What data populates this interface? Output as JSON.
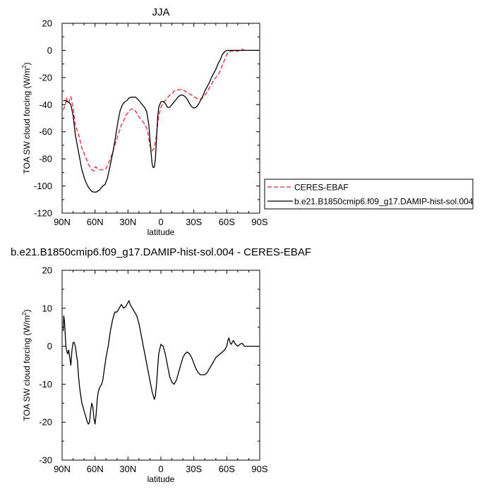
{
  "chart_data": [
    {
      "type": "line",
      "title": "JJA",
      "xlabel": "latitude",
      "ylabel": "TOA SW cloud forcing",
      "ylabel_unit": "(W/m",
      "ylabel_unit_sup": "2",
      "ylabel_unit_close": ")",
      "x_direction": "north-to-south",
      "xlim": [
        90,
        -90
      ],
      "ylim": [
        -120,
        20
      ],
      "xticks": [
        90,
        60,
        30,
        0,
        -30,
        -60,
        -90
      ],
      "xtick_labels": [
        "90N",
        "60N",
        "30N",
        "0",
        "30S",
        "60S",
        "90S"
      ],
      "yticks": [
        -120,
        -100,
        -80,
        -60,
        -40,
        -20,
        0,
        20
      ],
      "ytick_labels": [
        "-120",
        "-100",
        "-80",
        "-60",
        "-40",
        "-20",
        "0",
        "20"
      ],
      "grid": false,
      "legend": "right",
      "series": [
        {
          "name": "CERES-EBAF",
          "color": "#e8262d",
          "dash": "dashed",
          "x": [
            89,
            88,
            87,
            86,
            85,
            84,
            83,
            82,
            80,
            78,
            75,
            72,
            69,
            66,
            63,
            61,
            60,
            59,
            58,
            56,
            54,
            52,
            50,
            48,
            46,
            44,
            42,
            40,
            38,
            36,
            34,
            32,
            30,
            28,
            26,
            24,
            22,
            20,
            18,
            16,
            14,
            12,
            10,
            8,
            6,
            4,
            2,
            0,
            -2,
            -4,
            -6,
            -8,
            -10,
            -12,
            -14,
            -16,
            -18,
            -20,
            -22,
            -24,
            -26,
            -28,
            -30,
            -32,
            -34,
            -36,
            -38,
            -40,
            -42,
            -44,
            -46,
            -48,
            -50,
            -52,
            -54,
            -56,
            -58,
            -60,
            -62,
            -64,
            -66,
            -68,
            -70,
            -72,
            -74,
            -76,
            -78,
            -80,
            -82,
            -84,
            -86,
            -88,
            -89
          ],
          "y": [
            -44,
            -42,
            -40,
            -35,
            -38,
            -39,
            -36,
            -34,
            -42,
            -55,
            -62,
            -72,
            -78,
            -84,
            -88,
            -89,
            -86,
            -86,
            -87,
            -88,
            -88,
            -88,
            -87,
            -84,
            -80,
            -75,
            -70,
            -65,
            -60,
            -55,
            -52,
            -48,
            -46,
            -44,
            -43,
            -44,
            -46,
            -49,
            -51,
            -53,
            -55,
            -60,
            -70,
            -74,
            -72,
            -62,
            -48,
            -42,
            -39,
            -37,
            -35,
            -33,
            -32,
            -30,
            -29,
            -29,
            -29,
            -29,
            -30,
            -31,
            -32,
            -33,
            -34,
            -35,
            -36,
            -36,
            -35,
            -33,
            -31,
            -28,
            -25,
            -22,
            -20,
            -18,
            -15,
            -11,
            -7,
            -3,
            -1,
            -0.5,
            -0.5,
            -0.5,
            -0.5,
            0,
            1,
            0,
            0,
            0,
            0,
            0,
            0,
            0,
            0
          ]
        },
        {
          "name": "b.e21.B1850cmip6.f09_g17.DAMIP-hist-sol.004",
          "color": "#000000",
          "dash": "solid",
          "x": [
            89,
            88,
            87,
            86,
            85,
            84,
            83,
            82,
            80,
            78,
            75,
            72,
            69,
            66,
            63,
            61,
            60,
            59,
            58,
            57,
            56,
            55,
            53,
            51,
            49,
            47,
            45,
            43,
            41,
            39,
            37,
            35,
            33,
            31,
            29,
            27,
            25,
            23,
            21,
            19,
            17,
            15,
            13,
            11,
            9,
            8,
            7,
            6,
            5,
            4,
            3,
            2,
            0,
            -2,
            -4,
            -6,
            -8,
            -10,
            -12,
            -14,
            -16,
            -18,
            -20,
            -22,
            -24,
            -26,
            -28,
            -30,
            -32,
            -34,
            -36,
            -38,
            -40,
            -42,
            -44,
            -46,
            -48,
            -50,
            -52,
            -54,
            -56,
            -58,
            -60,
            -62,
            -64,
            -66,
            -68,
            -70,
            -72,
            -74,
            -76,
            -78,
            -80,
            -82,
            -84,
            -86,
            -88,
            -89
          ],
          "y": [
            -37,
            -37,
            -37,
            -37.5,
            -38,
            -38,
            -39,
            -40,
            -48,
            -62,
            -75,
            -88,
            -96,
            -101,
            -104,
            -104.5,
            -104.5,
            -104.5,
            -104,
            -103.5,
            -103,
            -102,
            -100,
            -99,
            -95,
            -88,
            -80,
            -72,
            -62,
            -52,
            -44,
            -40,
            -38,
            -37,
            -35,
            -34.5,
            -34.5,
            -34.5,
            -36,
            -38,
            -40,
            -42,
            -45,
            -55,
            -75,
            -84,
            -86.5,
            -86,
            -80,
            -65,
            -50,
            -42,
            -38,
            -37.5,
            -39,
            -42,
            -42,
            -40,
            -38,
            -36,
            -34,
            -33,
            -33,
            -34,
            -36,
            -39,
            -41.5,
            -42.5,
            -42,
            -40,
            -37,
            -34,
            -30,
            -27,
            -24,
            -20,
            -17,
            -14,
            -10,
            -7,
            -3,
            -1,
            0,
            0,
            0,
            0,
            0,
            0,
            0,
            0,
            0,
            0,
            0,
            0,
            0,
            0,
            0,
            0
          ]
        }
      ]
    },
    {
      "type": "line",
      "title": "b.e21.B1850cmip6.f09_g17.DAMIP-hist-sol.004 - CERES-EBAF",
      "xlabel": "latitude",
      "ylabel": "TOA SW cloud forcing",
      "ylabel_unit": "(W/m",
      "ylabel_unit_sup": "2",
      "ylabel_unit_close": ")",
      "x_direction": "north-to-south",
      "xlim": [
        90,
        -90
      ],
      "ylim": [
        -30,
        20
      ],
      "xticks": [
        90,
        60,
        30,
        0,
        -30,
        -60,
        -90
      ],
      "xtick_labels": [
        "90N",
        "60N",
        "30N",
        "0",
        "30S",
        "60S",
        "90S"
      ],
      "yticks": [
        -30,
        -20,
        -10,
        0,
        10,
        20
      ],
      "ytick_labels": [
        "-30",
        "-20",
        "-10",
        "0",
        "10",
        "20"
      ],
      "grid": false,
      "legend": "none",
      "series": [
        {
          "color": "#000000",
          "dash": "solid",
          "x": [
            89,
            88.5,
            88,
            87.5,
            87,
            86.5,
            86,
            85,
            84,
            83,
            82,
            81,
            80,
            79,
            78,
            77,
            76,
            75,
            74,
            73,
            72,
            71,
            70,
            69,
            68,
            67,
            66,
            65,
            64,
            63,
            62,
            61,
            60,
            59,
            58,
            57,
            56,
            55,
            54,
            53,
            52,
            51,
            50,
            48,
            46,
            44,
            42,
            40,
            38,
            36,
            34,
            32,
            30,
            29,
            28,
            26,
            24,
            22,
            20,
            18,
            16,
            14,
            12,
            10,
            8,
            6,
            5,
            4,
            3,
            2,
            0,
            -2,
            -4,
            -6,
            -8,
            -10,
            -12,
            -14,
            -16,
            -18,
            -20,
            -22,
            -24,
            -26,
            -28,
            -30,
            -32,
            -34,
            -36,
            -38,
            -40,
            -42,
            -44,
            -46,
            -48,
            -50,
            -52,
            -54,
            -56,
            -58,
            -60,
            -61,
            -62,
            -63,
            -64,
            -65,
            -66,
            -68,
            -70,
            -72,
            -74,
            -76,
            -78,
            -80,
            -82,
            -84,
            -86,
            -88,
            -89
          ],
          "y": [
            4,
            8,
            7,
            5,
            2,
            0,
            -1,
            -2,
            -1,
            -3,
            -5,
            -1,
            1,
            1,
            0,
            -2,
            -4,
            -8,
            -11,
            -13,
            -15,
            -16,
            -17,
            -18,
            -19,
            -20,
            -20.5,
            -20,
            -17,
            -15,
            -16,
            -19,
            -20.5,
            -18,
            -14,
            -12,
            -11,
            -10.5,
            -10,
            -9,
            -7,
            -5,
            -3,
            0,
            4,
            7,
            9,
            9,
            10,
            11,
            10,
            10.5,
            11.5,
            12,
            11,
            10,
            9,
            8,
            6,
            3,
            0,
            -3,
            -6,
            -9,
            -12,
            -14,
            -13,
            -10,
            -6,
            -2,
            0.5,
            0,
            -2,
            -5,
            -8,
            -9.5,
            -10,
            -9,
            -7,
            -5,
            -3,
            -2,
            -1.5,
            -2,
            -3,
            -4.5,
            -6,
            -7,
            -7.5,
            -7.5,
            -7.5,
            -7,
            -6,
            -5,
            -4,
            -3,
            -2.5,
            -2,
            -1.5,
            -1,
            0,
            1.5,
            2.2,
            1,
            0.5,
            1,
            1.5,
            0.5,
            0,
            0.5,
            0.8,
            0,
            0,
            0,
            0,
            0,
            0,
            0,
            0
          ]
        }
      ]
    }
  ]
}
